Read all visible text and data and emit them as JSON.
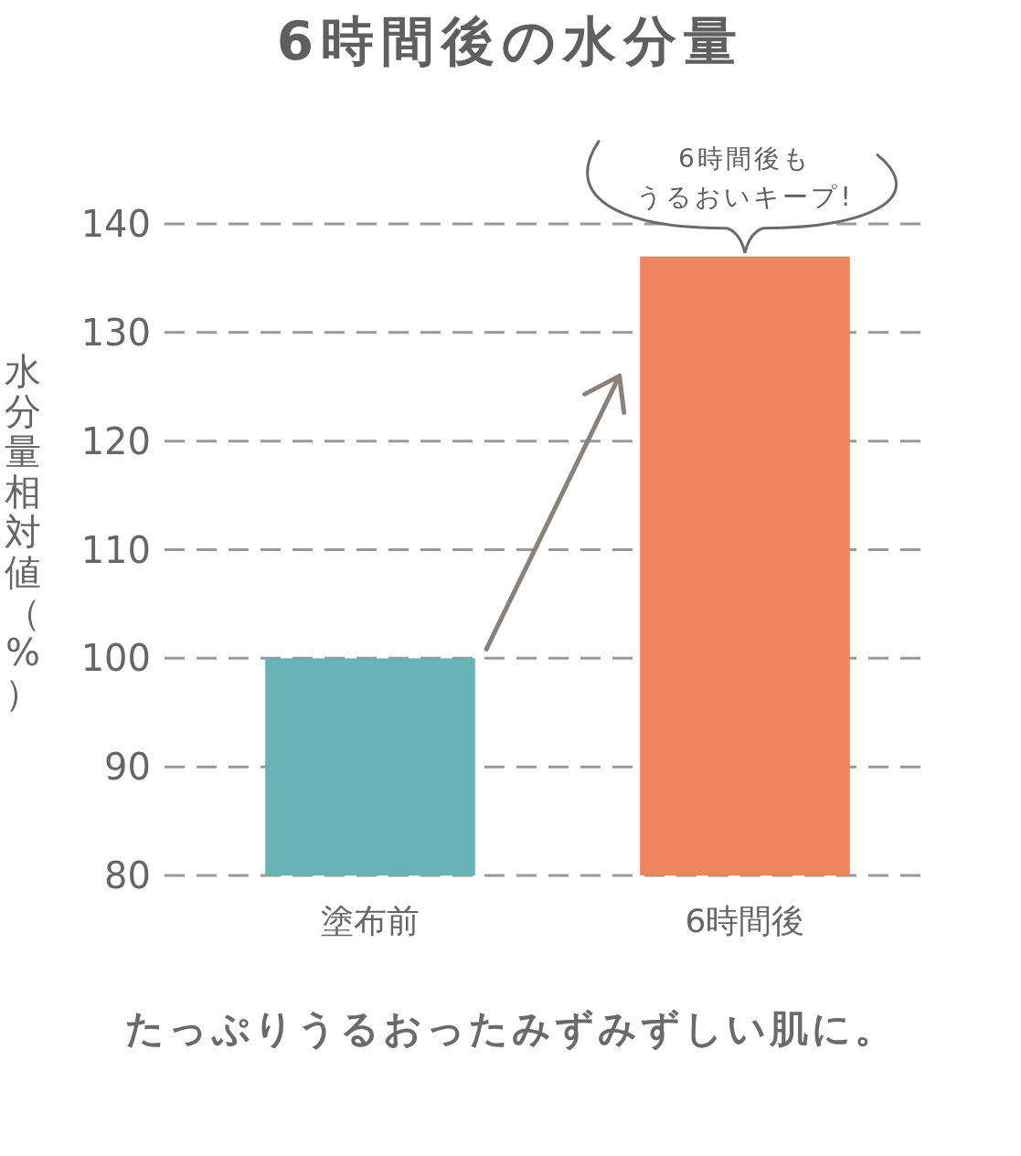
{
  "chart_data": {
    "type": "bar",
    "title": "6時間後の水分量",
    "ylabel": "水分量相対値（%）",
    "categories": [
      "塗布前",
      "6時間後"
    ],
    "values": [
      100,
      137
    ],
    "colors": [
      "#68b3b6",
      "#ef845f"
    ],
    "ylim": [
      80,
      140
    ],
    "yticks": [
      80,
      90,
      100,
      110,
      120,
      130,
      140
    ],
    "grid": "y",
    "annotations": [
      {
        "text": "6時間後も",
        "x": "6時間後",
        "y": 137
      },
      {
        "text": "うるおいキープ!",
        "x": "6時間後",
        "y": 137
      },
      "たっぷりうるおったみずみずしい肌に。"
    ]
  }
}
